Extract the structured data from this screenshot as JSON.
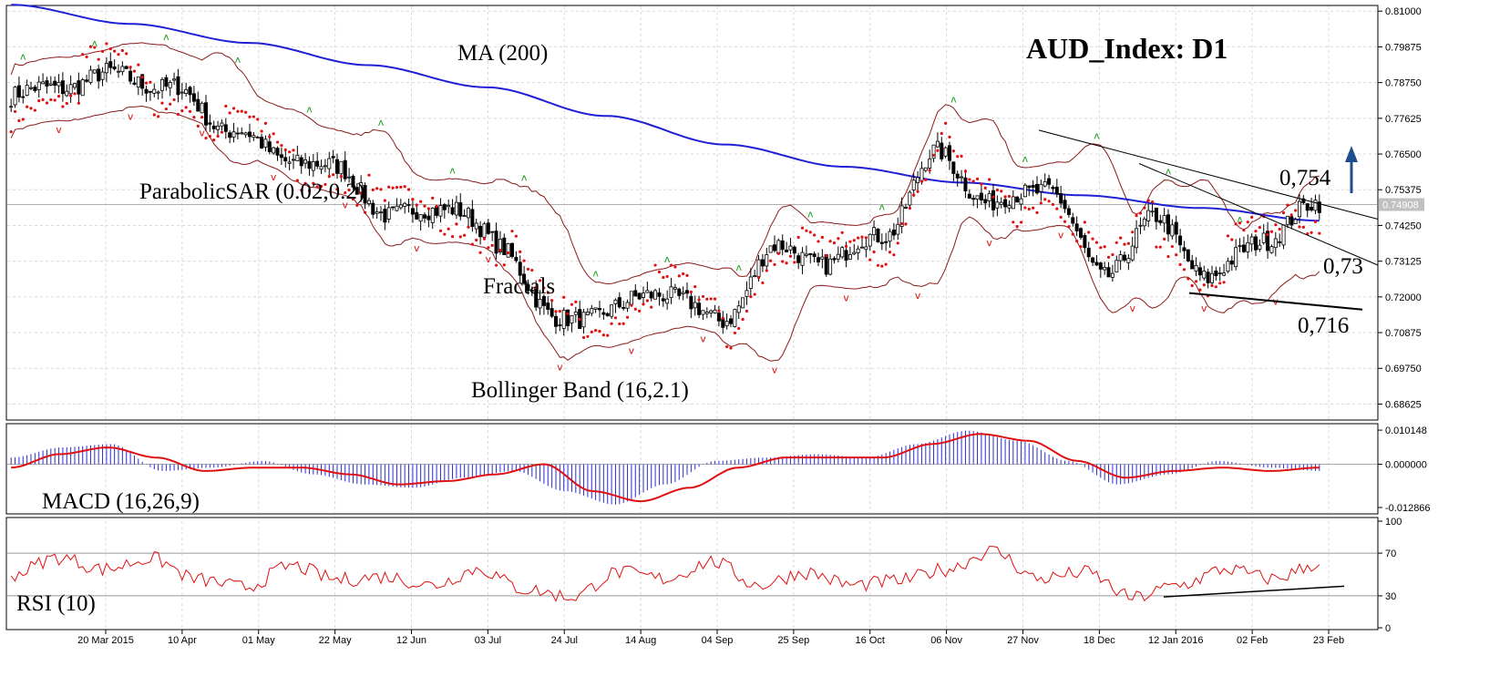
{
  "chart_data": {
    "type": "candlestick",
    "title": "AUD_Index: D1",
    "current_price_label": "0.74908",
    "colors": {
      "ma": "#1f1fd6",
      "bollinger": "#8b1a1a",
      "sar": "#e01010",
      "fractal_up": "#20a020",
      "fractal_down": "#e01010",
      "macd_hist": "#2b2bd6",
      "macd_signal": "#e01010",
      "rsi": "#e01010",
      "trend": "#000000",
      "arrow": "#1f4e8c"
    },
    "price_axis": {
      "ticks": [
        "0.81000",
        "0.79875",
        "0.78750",
        "0.77625",
        "0.76500",
        "0.75375",
        "0.74250",
        "0.73125",
        "0.72000",
        "0.70875",
        "0.69750",
        "0.68625"
      ],
      "ylim": [
        0.6815,
        0.8115
      ]
    },
    "dates": [
      "20 Mar 2015",
      "10 Apr",
      "01 May",
      "22 May",
      "12 Jun",
      "03 Jul",
      "24 Jul",
      "14 Aug",
      "04 Sep",
      "25 Sep",
      "16 Oct",
      "06 Nov",
      "27 Nov",
      "18 Dec",
      "12 Jan 2016",
      "02 Feb",
      "23 Feb"
    ],
    "close_anchors": [
      0.783,
      0.787,
      0.79,
      0.785,
      0.773,
      0.764,
      0.76,
      0.745,
      0.749,
      0.736,
      0.712,
      0.716,
      0.722,
      0.712,
      0.735,
      0.731,
      0.74,
      0.765,
      0.749,
      0.755,
      0.727,
      0.744,
      0.726,
      0.739,
      0.749
    ],
    "ma200_anchors": [
      0.812,
      0.806,
      0.8,
      0.793,
      0.786,
      0.777,
      0.768,
      0.761,
      0.756,
      0.752,
      0.748,
      0.744
    ],
    "indicators": {
      "ma": "MA (200)",
      "sar": "ParabolicSAR (0.02,0.2)",
      "fractals": "Fractals",
      "bollinger": "Bollinger Band (16,2.1)"
    },
    "levels": [
      "0,754",
      "0,73",
      "0,716"
    ],
    "macd": {
      "label": "MACD (16,26,9)",
      "ticks": [
        "0.010148",
        "0.000000",
        "-0.012866"
      ],
      "ylim": [
        -0.0145,
        0.0118
      ],
      "hist_anchors": [
        0.002,
        0.005,
        0.006,
        -0.002,
        -0.001,
        0.001,
        -0.003,
        -0.006,
        -0.007,
        -0.004,
        -0.002,
        -0.008,
        -0.012,
        -0.006,
        0.001,
        0.002,
        0.003,
        0.002,
        0.006,
        0.01,
        0.007,
        0.001,
        -0.006,
        -0.003,
        0.001,
        -0.001,
        -0.002
      ],
      "signal_anchors": [
        -0.001,
        0.003,
        0.005,
        0.002,
        -0.002,
        -0.001,
        -0.001,
        -0.003,
        -0.006,
        -0.005,
        -0.003,
        0.0,
        -0.008,
        -0.011,
        -0.007,
        -0.001,
        0.002,
        0.002,
        0.002,
        0.006,
        0.009,
        0.007,
        0.001,
        -0.004,
        -0.002,
        -0.001,
        -0.002,
        -0.001
      ]
    },
    "rsi": {
      "label": "RSI (10)",
      "ticks": [
        "100",
        "70",
        "30",
        "0"
      ],
      "ylim": [
        0,
        100
      ],
      "levels": [
        70,
        30
      ],
      "anchors": [
        50,
        66,
        55,
        65,
        45,
        38,
        58,
        45,
        48,
        40,
        55,
        36,
        29,
        52,
        46,
        62,
        40,
        52,
        40,
        44,
        55,
        72,
        46,
        52,
        28,
        40,
        55,
        46,
        60
      ]
    }
  }
}
